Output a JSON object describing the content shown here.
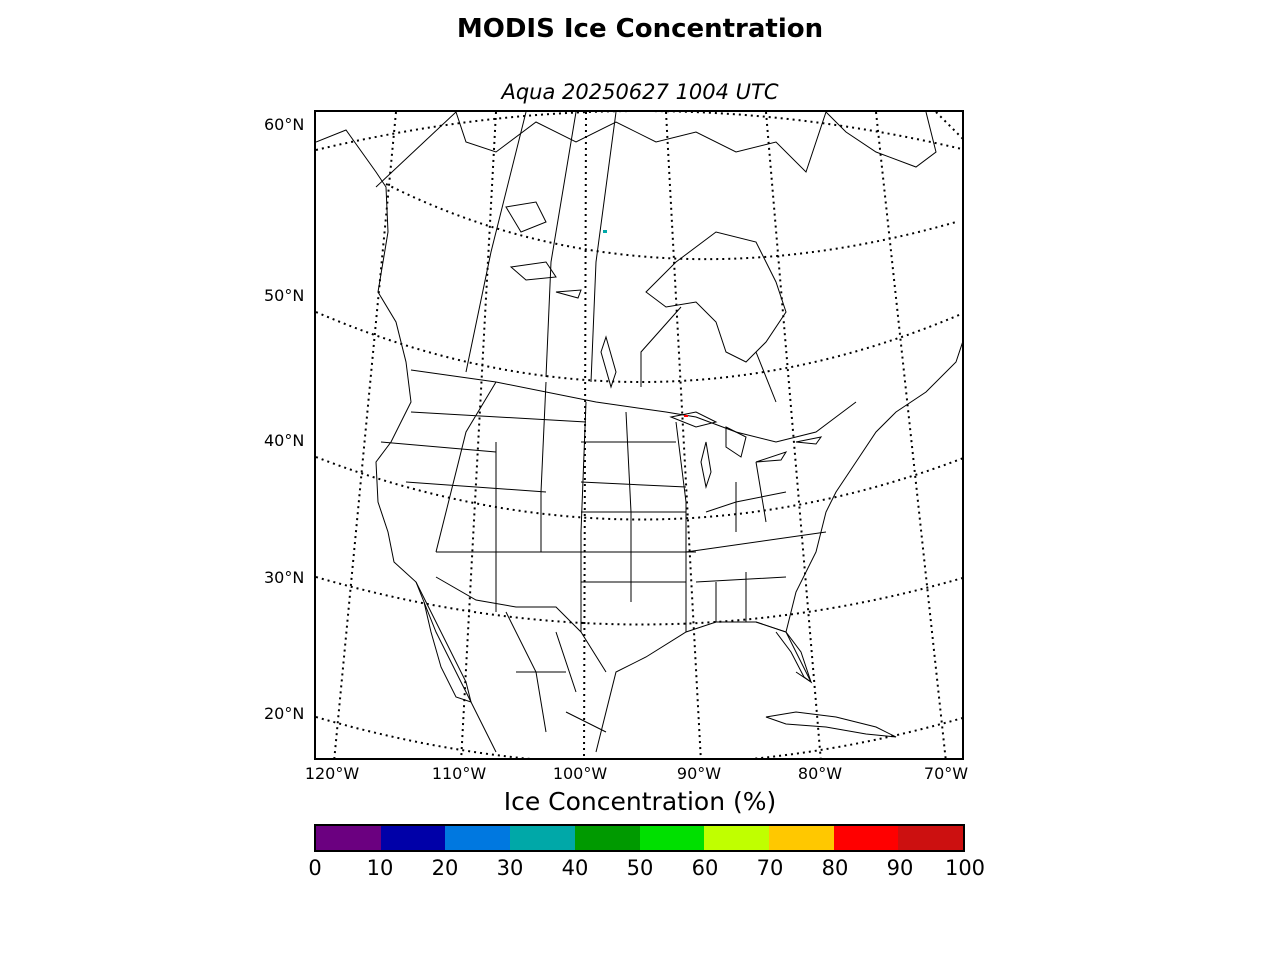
{
  "title": "MODIS Ice Concentration",
  "subtitle": "Aqua 20250627 1004 UTC",
  "map": {
    "latitude_labels": [
      "60°N",
      "50°N",
      "40°N",
      "30°N",
      "20°N"
    ],
    "longitude_labels": [
      "120°W",
      "110°W",
      "100°W",
      "90°W",
      "80°W",
      "70°W"
    ],
    "graticule_style": "dotted"
  },
  "colorbar": {
    "title": "Ice Concentration (%)",
    "ticks": [
      "0",
      "10",
      "20",
      "30",
      "40",
      "50",
      "60",
      "70",
      "80",
      "90",
      "100"
    ],
    "colors": [
      "#6b0080",
      "#0000a8",
      "#0078e0",
      "#00a8a8",
      "#009a00",
      "#00e000",
      "#c0ff00",
      "#ffc800",
      "#ff0000",
      "#cc1010"
    ]
  }
}
